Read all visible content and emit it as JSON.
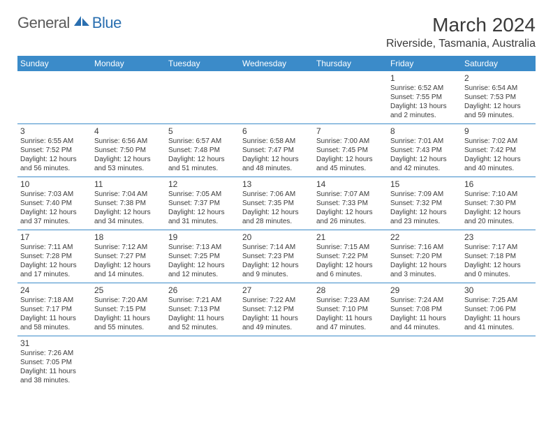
{
  "logo": {
    "general": "General",
    "blue": "Blue"
  },
  "title": "March 2024",
  "location": "Riverside, Tasmania, Australia",
  "colors": {
    "header_bg": "#3b8bc9",
    "header_text": "#ffffff",
    "border": "#3b8bc9",
    "text": "#3a3a3a",
    "logo_gray": "#5a5a5a",
    "logo_blue": "#2a6fb0"
  },
  "day_labels": [
    "Sunday",
    "Monday",
    "Tuesday",
    "Wednesday",
    "Thursday",
    "Friday",
    "Saturday"
  ],
  "weeks": [
    [
      null,
      null,
      null,
      null,
      null,
      {
        "n": "1",
        "sr": "Sunrise: 6:52 AM",
        "ss": "Sunset: 7:55 PM",
        "dl1": "Daylight: 13 hours",
        "dl2": "and 2 minutes."
      },
      {
        "n": "2",
        "sr": "Sunrise: 6:54 AM",
        "ss": "Sunset: 7:53 PM",
        "dl1": "Daylight: 12 hours",
        "dl2": "and 59 minutes."
      }
    ],
    [
      {
        "n": "3",
        "sr": "Sunrise: 6:55 AM",
        "ss": "Sunset: 7:52 PM",
        "dl1": "Daylight: 12 hours",
        "dl2": "and 56 minutes."
      },
      {
        "n": "4",
        "sr": "Sunrise: 6:56 AM",
        "ss": "Sunset: 7:50 PM",
        "dl1": "Daylight: 12 hours",
        "dl2": "and 53 minutes."
      },
      {
        "n": "5",
        "sr": "Sunrise: 6:57 AM",
        "ss": "Sunset: 7:48 PM",
        "dl1": "Daylight: 12 hours",
        "dl2": "and 51 minutes."
      },
      {
        "n": "6",
        "sr": "Sunrise: 6:58 AM",
        "ss": "Sunset: 7:47 PM",
        "dl1": "Daylight: 12 hours",
        "dl2": "and 48 minutes."
      },
      {
        "n": "7",
        "sr": "Sunrise: 7:00 AM",
        "ss": "Sunset: 7:45 PM",
        "dl1": "Daylight: 12 hours",
        "dl2": "and 45 minutes."
      },
      {
        "n": "8",
        "sr": "Sunrise: 7:01 AM",
        "ss": "Sunset: 7:43 PM",
        "dl1": "Daylight: 12 hours",
        "dl2": "and 42 minutes."
      },
      {
        "n": "9",
        "sr": "Sunrise: 7:02 AM",
        "ss": "Sunset: 7:42 PM",
        "dl1": "Daylight: 12 hours",
        "dl2": "and 40 minutes."
      }
    ],
    [
      {
        "n": "10",
        "sr": "Sunrise: 7:03 AM",
        "ss": "Sunset: 7:40 PM",
        "dl1": "Daylight: 12 hours",
        "dl2": "and 37 minutes."
      },
      {
        "n": "11",
        "sr": "Sunrise: 7:04 AM",
        "ss": "Sunset: 7:38 PM",
        "dl1": "Daylight: 12 hours",
        "dl2": "and 34 minutes."
      },
      {
        "n": "12",
        "sr": "Sunrise: 7:05 AM",
        "ss": "Sunset: 7:37 PM",
        "dl1": "Daylight: 12 hours",
        "dl2": "and 31 minutes."
      },
      {
        "n": "13",
        "sr": "Sunrise: 7:06 AM",
        "ss": "Sunset: 7:35 PM",
        "dl1": "Daylight: 12 hours",
        "dl2": "and 28 minutes."
      },
      {
        "n": "14",
        "sr": "Sunrise: 7:07 AM",
        "ss": "Sunset: 7:33 PM",
        "dl1": "Daylight: 12 hours",
        "dl2": "and 26 minutes."
      },
      {
        "n": "15",
        "sr": "Sunrise: 7:09 AM",
        "ss": "Sunset: 7:32 PM",
        "dl1": "Daylight: 12 hours",
        "dl2": "and 23 minutes."
      },
      {
        "n": "16",
        "sr": "Sunrise: 7:10 AM",
        "ss": "Sunset: 7:30 PM",
        "dl1": "Daylight: 12 hours",
        "dl2": "and 20 minutes."
      }
    ],
    [
      {
        "n": "17",
        "sr": "Sunrise: 7:11 AM",
        "ss": "Sunset: 7:28 PM",
        "dl1": "Daylight: 12 hours",
        "dl2": "and 17 minutes."
      },
      {
        "n": "18",
        "sr": "Sunrise: 7:12 AM",
        "ss": "Sunset: 7:27 PM",
        "dl1": "Daylight: 12 hours",
        "dl2": "and 14 minutes."
      },
      {
        "n": "19",
        "sr": "Sunrise: 7:13 AM",
        "ss": "Sunset: 7:25 PM",
        "dl1": "Daylight: 12 hours",
        "dl2": "and 12 minutes."
      },
      {
        "n": "20",
        "sr": "Sunrise: 7:14 AM",
        "ss": "Sunset: 7:23 PM",
        "dl1": "Daylight: 12 hours",
        "dl2": "and 9 minutes."
      },
      {
        "n": "21",
        "sr": "Sunrise: 7:15 AM",
        "ss": "Sunset: 7:22 PM",
        "dl1": "Daylight: 12 hours",
        "dl2": "and 6 minutes."
      },
      {
        "n": "22",
        "sr": "Sunrise: 7:16 AM",
        "ss": "Sunset: 7:20 PM",
        "dl1": "Daylight: 12 hours",
        "dl2": "and 3 minutes."
      },
      {
        "n": "23",
        "sr": "Sunrise: 7:17 AM",
        "ss": "Sunset: 7:18 PM",
        "dl1": "Daylight: 12 hours",
        "dl2": "and 0 minutes."
      }
    ],
    [
      {
        "n": "24",
        "sr": "Sunrise: 7:18 AM",
        "ss": "Sunset: 7:17 PM",
        "dl1": "Daylight: 11 hours",
        "dl2": "and 58 minutes."
      },
      {
        "n": "25",
        "sr": "Sunrise: 7:20 AM",
        "ss": "Sunset: 7:15 PM",
        "dl1": "Daylight: 11 hours",
        "dl2": "and 55 minutes."
      },
      {
        "n": "26",
        "sr": "Sunrise: 7:21 AM",
        "ss": "Sunset: 7:13 PM",
        "dl1": "Daylight: 11 hours",
        "dl2": "and 52 minutes."
      },
      {
        "n": "27",
        "sr": "Sunrise: 7:22 AM",
        "ss": "Sunset: 7:12 PM",
        "dl1": "Daylight: 11 hours",
        "dl2": "and 49 minutes."
      },
      {
        "n": "28",
        "sr": "Sunrise: 7:23 AM",
        "ss": "Sunset: 7:10 PM",
        "dl1": "Daylight: 11 hours",
        "dl2": "and 47 minutes."
      },
      {
        "n": "29",
        "sr": "Sunrise: 7:24 AM",
        "ss": "Sunset: 7:08 PM",
        "dl1": "Daylight: 11 hours",
        "dl2": "and 44 minutes."
      },
      {
        "n": "30",
        "sr": "Sunrise: 7:25 AM",
        "ss": "Sunset: 7:06 PM",
        "dl1": "Daylight: 11 hours",
        "dl2": "and 41 minutes."
      }
    ],
    [
      {
        "n": "31",
        "sr": "Sunrise: 7:26 AM",
        "ss": "Sunset: 7:05 PM",
        "dl1": "Daylight: 11 hours",
        "dl2": "and 38 minutes."
      },
      null,
      null,
      null,
      null,
      null,
      null
    ]
  ]
}
